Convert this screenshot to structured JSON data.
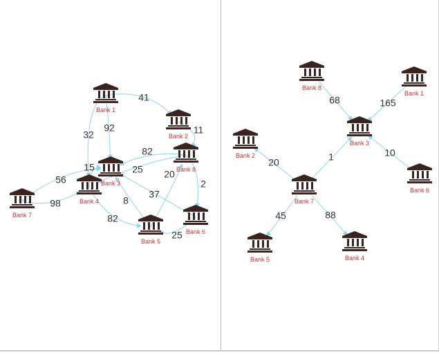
{
  "colors": {
    "edge": "#8fd3ee",
    "icon": "#3b2320",
    "node_label": "#d42a2a",
    "edge_label": "#333333",
    "divider": "#b8b8b8"
  },
  "icon_name": "bank-building-icon",
  "graphs": [
    {
      "id": "left-graph",
      "nodes": [
        {
          "id": "bank-1",
          "label": "Bank 1"
        },
        {
          "id": "bank-2",
          "label": "Bank 2"
        },
        {
          "id": "bank-3",
          "label": "Bank 3"
        },
        {
          "id": "bank-4",
          "label": "Bank 4"
        },
        {
          "id": "bank-5",
          "label": "Bank 5"
        },
        {
          "id": "bank-6",
          "label": "Bank 6"
        },
        {
          "id": "bank-7",
          "label": "Bank 7"
        },
        {
          "id": "bank-8",
          "label": "Bank 8"
        }
      ],
      "edges": [
        {
          "from": "bank-1",
          "to": "bank-2",
          "weight": "41"
        },
        {
          "from": "bank-1",
          "to": "bank-3",
          "weight": "92"
        },
        {
          "from": "bank-1",
          "to": "bank-4",
          "weight": "32"
        },
        {
          "from": "bank-2",
          "to": "bank-8",
          "weight": "11"
        },
        {
          "from": "bank-8",
          "to": "bank-3",
          "weight": "82"
        },
        {
          "from": "bank-8",
          "to": "bank-4",
          "weight": "25"
        },
        {
          "from": "bank-8",
          "to": "bank-6",
          "weight": "2"
        },
        {
          "from": "bank-5",
          "to": "bank-8",
          "weight": "20"
        },
        {
          "from": "bank-6",
          "to": "bank-3",
          "weight": "37"
        },
        {
          "from": "bank-7",
          "to": "bank-3",
          "weight": "56"
        },
        {
          "from": "bank-7",
          "to": "bank-4",
          "weight": "98"
        },
        {
          "from": "bank-4",
          "to": "bank-3",
          "weight": "15"
        },
        {
          "from": "bank-4",
          "to": "bank-5",
          "weight": "82"
        },
        {
          "from": "bank-5",
          "to": "bank-3",
          "weight": "8"
        },
        {
          "from": "bank-6",
          "to": "bank-5",
          "weight": "25"
        }
      ]
    },
    {
      "id": "right-graph",
      "nodes": [
        {
          "id": "bank-8",
          "label": "Bank 8"
        },
        {
          "id": "bank-1",
          "label": "Bank 1"
        },
        {
          "id": "bank-3",
          "label": "Bank 3"
        },
        {
          "id": "bank-2",
          "label": "Bank 2"
        },
        {
          "id": "bank-6",
          "label": "Bank 6"
        },
        {
          "id": "bank-7",
          "label": "Bank 7"
        },
        {
          "id": "bank-5",
          "label": "Bank 5"
        },
        {
          "id": "bank-4",
          "label": "Bank 4"
        }
      ],
      "edges": [
        {
          "from": "bank-8",
          "to": "bank-3",
          "weight": "68"
        },
        {
          "from": "bank-1",
          "to": "bank-3",
          "weight": "165"
        },
        {
          "from": "bank-6",
          "to": "bank-3",
          "weight": "10"
        },
        {
          "from": "bank-7",
          "to": "bank-3",
          "weight": "1"
        },
        {
          "from": "bank-7",
          "to": "bank-2",
          "weight": "20"
        },
        {
          "from": "bank-7",
          "to": "bank-5",
          "weight": "45"
        },
        {
          "from": "bank-7",
          "to": "bank-4",
          "weight": "88"
        }
      ]
    }
  ]
}
